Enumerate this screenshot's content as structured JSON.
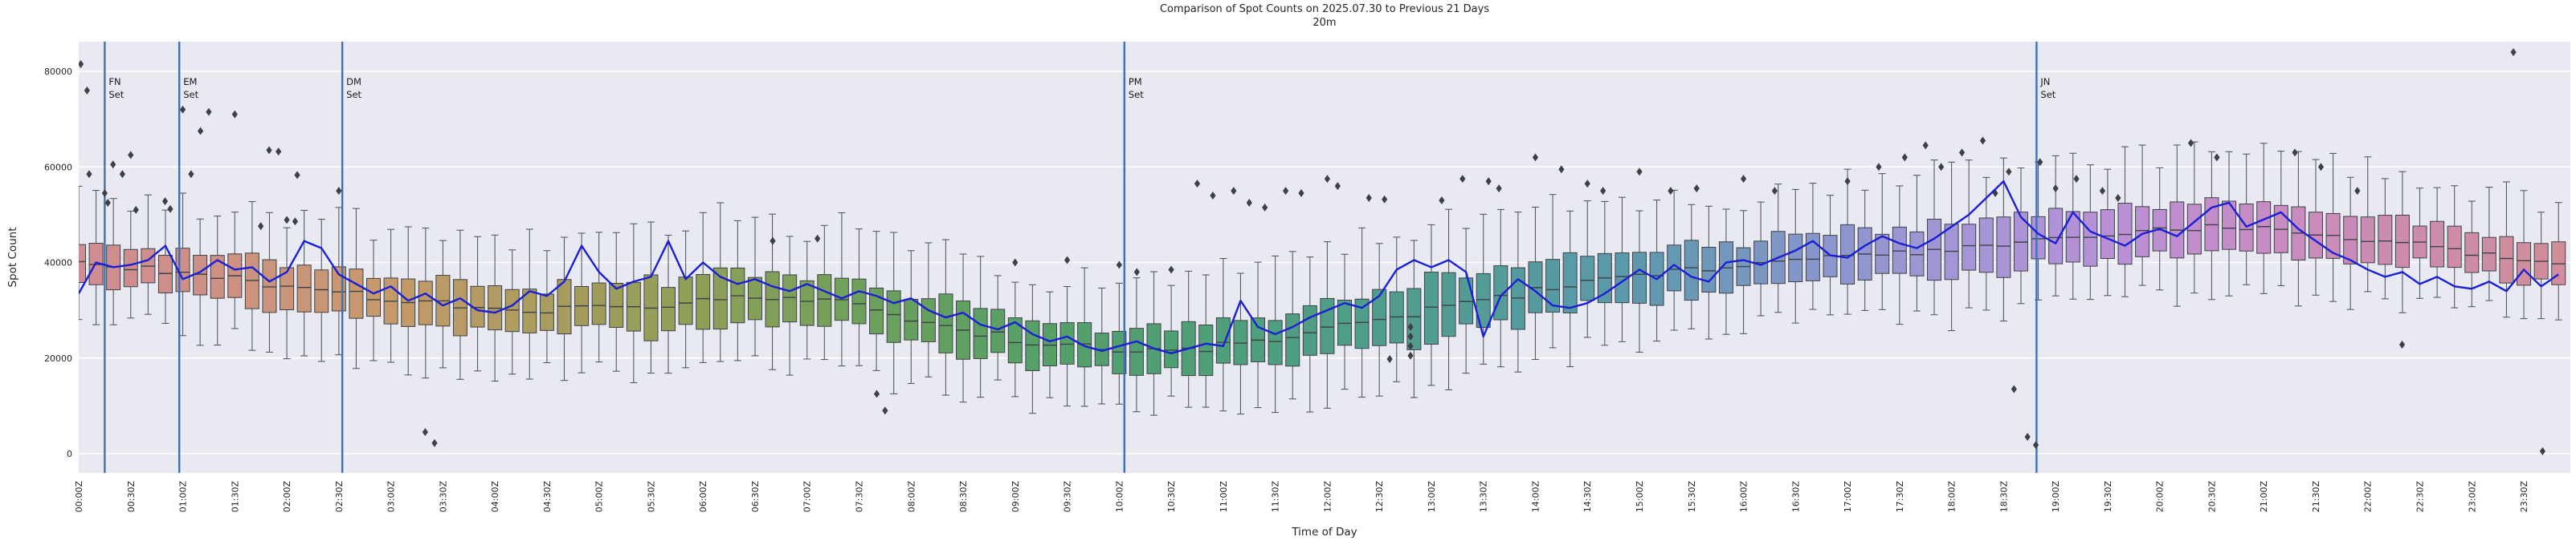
{
  "figure": {
    "title": "Comparison of Spot Counts on 2025.07.30 to Previous 21 Days",
    "subtitle": "20m",
    "x_axis_label": "Time of Day",
    "y_axis_label": "Spot Count",
    "background": "#ffffff",
    "plot_background": "#e9e9f2",
    "gridline_color": "#ffffff"
  },
  "chart_data": {
    "type": "boxplot+line",
    "title": "Comparison of Spot Counts on 2025.07.30 to Previous 21 Days",
    "subtitle_band": "20m",
    "xlabel": "Time of Day",
    "ylabel": "Spot Count",
    "x_unit": "UTC time of day",
    "y_unit": "spot count",
    "interval_minutes": 10,
    "x_tick_labels": [
      "00:00Z",
      "00:30Z",
      "01:00Z",
      "01:30Z",
      "02:00Z",
      "02:30Z",
      "03:00Z",
      "03:30Z",
      "04:00Z",
      "04:30Z",
      "05:00Z",
      "05:30Z",
      "06:00Z",
      "06:30Z",
      "07:00Z",
      "07:30Z",
      "08:00Z",
      "08:30Z",
      "09:00Z",
      "09:30Z",
      "10:00Z",
      "10:30Z",
      "11:00Z",
      "11:30Z",
      "12:00Z",
      "12:30Z",
      "13:00Z",
      "13:30Z",
      "14:00Z",
      "14:30Z",
      "15:00Z",
      "15:30Z",
      "16:00Z",
      "16:30Z",
      "17:00Z",
      "17:30Z",
      "18:00Z",
      "18:30Z",
      "19:00Z",
      "19:30Z",
      "20:00Z",
      "20:30Z",
      "21:00Z",
      "21:30Z",
      "22:00Z",
      "22:30Z",
      "23:00Z",
      "23:30Z"
    ],
    "y_ticks": [
      0,
      20000,
      40000,
      60000,
      80000
    ],
    "y_tick_labels": [
      "0",
      "20000",
      "40000",
      "60000",
      "80000"
    ],
    "ylim_top": 86300,
    "ylim_bottom": -4000,
    "anchor_step_minutes": 30,
    "box_median_anchors_k": [
      39.5,
      39,
      38,
      36.5,
      35,
      34,
      32.5,
      31.5,
      30.5,
      30,
      30.5,
      31,
      32,
      32.5,
      32.5,
      31,
      28.5,
      26,
      24,
      22.5,
      21.8,
      21.5,
      22.5,
      24,
      26,
      28,
      30,
      32,
      34,
      36,
      37.5,
      38.5,
      39.5,
      40,
      41,
      42,
      43,
      44,
      45,
      46,
      47,
      47.5,
      47.5,
      46.5,
      45,
      43.5,
      42,
      40.5,
      40
    ],
    "box_iqr_halfwidth_anchors_k": [
      4.5,
      4.5,
      4.5,
      5,
      5,
      5,
      5,
      5,
      5,
      5,
      5,
      5.5,
      5.5,
      5.5,
      5.5,
      5.5,
      5.5,
      5,
      4.5,
      4.5,
      4.5,
      4.5,
      5,
      5.5,
      6,
      6,
      6.5,
      6.5,
      6.5,
      6,
      5.5,
      5.5,
      5,
      5,
      5.5,
      5.5,
      6,
      6,
      5.5,
      5.5,
      5,
      5,
      5,
      5,
      5,
      4.5,
      4.5,
      4.5,
      4.5
    ],
    "box_whisker_low_extent_anchors_k": [
      9,
      9,
      9,
      10,
      10,
      10,
      10,
      10,
      10,
      10,
      10,
      10,
      10,
      10,
      10,
      10,
      10,
      9,
      8,
      8,
      8,
      8,
      9,
      10,
      11,
      11,
      11,
      11,
      11,
      10,
      9,
      9,
      9,
      9,
      9,
      10,
      10,
      10,
      10,
      9,
      9,
      9,
      9,
      9,
      9,
      8,
      8,
      8,
      8
    ],
    "box_whisker_high_extent_anchors_k": [
      11,
      11,
      11,
      12,
      12,
      12,
      11,
      11,
      11,
      11,
      11,
      12,
      12,
      12,
      12,
      12,
      11,
      10,
      10,
      10,
      10,
      10,
      11,
      12,
      13,
      13,
      13,
      13,
      12,
      12,
      11,
      11,
      10,
      10,
      11,
      12,
      12,
      13,
      13,
      12,
      12,
      12,
      11,
      11,
      11,
      10,
      10,
      10,
      10
    ],
    "current_day_line_k": [
      33.5,
      40,
      39,
      39.5,
      40.5,
      43.5,
      36.5,
      38,
      40.5,
      38.5,
      39,
      36,
      38,
      44.5,
      43,
      37.5,
      35.5,
      33.5,
      35,
      32,
      33.5,
      31,
      32.5,
      30,
      29.5,
      31,
      34,
      33,
      36,
      43.5,
      38,
      34.5,
      36,
      37,
      44.5,
      36.5,
      40,
      37,
      35.5,
      36.5,
      35,
      34,
      35.5,
      34,
      32.5,
      34,
      33,
      31.5,
      32.5,
      30,
      28.5,
      29.5,
      27,
      26,
      27.5,
      25,
      23.5,
      24.5,
      22.5,
      21.5,
      22.5,
      23.5,
      22,
      21,
      22,
      23,
      22.5,
      32,
      26.5,
      25,
      26.5,
      28.5,
      30,
      31.5,
      30.5,
      33,
      38.5,
      40.5,
      39,
      40.5,
      38,
      24.5,
      33,
      36.5,
      34,
      31,
      30.5,
      31.5,
      33.5,
      36,
      38.5,
      36.5,
      39.5,
      37,
      36,
      40,
      40.5,
      39.5,
      41,
      42.5,
      44.5,
      41.5,
      41,
      43.5,
      45.5,
      44,
      43,
      45,
      47.5,
      50,
      53.5,
      57,
      49.5,
      46,
      44,
      50.5,
      46.5,
      45,
      43.5,
      46,
      47,
      45.5,
      48.5,
      51.5,
      52.5,
      47.5,
      49,
      50.5,
      47,
      44.5,
      42,
      40.5,
      38.5,
      37,
      38,
      35.5,
      37,
      35,
      34.5,
      36,
      34,
      38.5,
      35,
      37.5
    ],
    "outliers_t_hours_value_k": [
      [
        0.02,
        81.5
      ],
      [
        0.08,
        76
      ],
      [
        0.1,
        58.5
      ],
      [
        0.25,
        54.5
      ],
      [
        0.28,
        52.5
      ],
      [
        0.33,
        60.5
      ],
      [
        0.42,
        58.5
      ],
      [
        0.5,
        62.5
      ],
      [
        0.55,
        51
      ],
      [
        0.83,
        52.8
      ],
      [
        0.88,
        51.2
      ],
      [
        1,
        72
      ],
      [
        1.08,
        58.5
      ],
      [
        1.17,
        67.5
      ],
      [
        1.25,
        71.5
      ],
      [
        1.5,
        71
      ],
      [
        1.75,
        47.6
      ],
      [
        1.83,
        63.5
      ],
      [
        1.92,
        63.2
      ],
      [
        2,
        48.9
      ],
      [
        2.08,
        48.6
      ],
      [
        2.1,
        58.3
      ],
      [
        2.5,
        55
      ],
      [
        3.33,
        4.5
      ],
      [
        3.42,
        2.2
      ],
      [
        6.67,
        44.5
      ],
      [
        7.1,
        45
      ],
      [
        7.67,
        12.5
      ],
      [
        7.75,
        9
      ],
      [
        9,
        40
      ],
      [
        9.5,
        40.5
      ],
      [
        10,
        39.5
      ],
      [
        10.17,
        38
      ],
      [
        10.5,
        38.5
      ],
      [
        10.75,
        56.5
      ],
      [
        10.9,
        54
      ],
      [
        11.1,
        55
      ],
      [
        11.25,
        52.5
      ],
      [
        11.4,
        51.5
      ],
      [
        11.6,
        55
      ],
      [
        11.75,
        54.5
      ],
      [
        12,
        57.5
      ],
      [
        12.1,
        56
      ],
      [
        12.4,
        53.5
      ],
      [
        12.55,
        53.2
      ],
      [
        12.6,
        19.8
      ],
      [
        12.8,
        26.5
      ],
      [
        12.8,
        24.5
      ],
      [
        12.8,
        22.5
      ],
      [
        12.8,
        20.5
      ],
      [
        13.1,
        53
      ],
      [
        13.3,
        57.5
      ],
      [
        13.55,
        57
      ],
      [
        13.65,
        55.5
      ],
      [
        14,
        62
      ],
      [
        14.25,
        59.5
      ],
      [
        14.5,
        56.5
      ],
      [
        14.65,
        55
      ],
      [
        15,
        59
      ],
      [
        15.3,
        55
      ],
      [
        15.55,
        55.5
      ],
      [
        16,
        57.5
      ],
      [
        16.3,
        55
      ],
      [
        17,
        57
      ],
      [
        17.3,
        60
      ],
      [
        17.55,
        62
      ],
      [
        17.75,
        64.5
      ],
      [
        17.9,
        60
      ],
      [
        18.1,
        63
      ],
      [
        18.3,
        65.5
      ],
      [
        18.42,
        54.5
      ],
      [
        18.55,
        59
      ],
      [
        18.6,
        13.5
      ],
      [
        18.73,
        3.5
      ],
      [
        18.81,
        1.8
      ],
      [
        18.85,
        61
      ],
      [
        19,
        55.5
      ],
      [
        19.2,
        57.5
      ],
      [
        19.45,
        55
      ],
      [
        19.6,
        53.5
      ],
      [
        20.3,
        65
      ],
      [
        20.55,
        62
      ],
      [
        21.3,
        63
      ],
      [
        21.55,
        60
      ],
      [
        21.9,
        55
      ],
      [
        22.33,
        22.8
      ],
      [
        23.4,
        84
      ],
      [
        23.68,
        0.5
      ]
    ],
    "sunset_lines": [
      {
        "line1": "FN",
        "line2": "Set",
        "minutes": 15
      },
      {
        "line1": "EM",
        "line2": "Set",
        "minutes": 58
      },
      {
        "line1": "DM",
        "line2": "Set",
        "minutes": 152
      },
      {
        "line1": "PM",
        "line2": "Set",
        "minutes": 603
      },
      {
        "line1": "JN",
        "line2": "Set",
        "minutes": 1129
      }
    ],
    "box_color_stops": [
      [
        0,
        "#cf8d95"
      ],
      [
        1.5,
        "#cc9180"
      ],
      [
        3,
        "#c59a69"
      ],
      [
        4.5,
        "#a89c5e"
      ],
      [
        6,
        "#8f9f58"
      ],
      [
        7.5,
        "#6fa05b"
      ],
      [
        9,
        "#58a065"
      ],
      [
        10.5,
        "#4f9f74"
      ],
      [
        12,
        "#4f9e85"
      ],
      [
        13.5,
        "#539c98"
      ],
      [
        15,
        "#5e98ad"
      ],
      [
        16.5,
        "#8496c8"
      ],
      [
        18,
        "#a396d6"
      ],
      [
        19.5,
        "#b790d6"
      ],
      [
        21,
        "#c78cc3"
      ],
      [
        22.5,
        "#cd8cab"
      ],
      [
        24,
        "#d08d98"
      ]
    ],
    "legend_position": "none",
    "grid": "horizontal-only",
    "line_color": "#1b1fd6",
    "sunset_line_color": "#4070b4",
    "box_edge_color": "#3d4248",
    "whisker_color": "#565b61",
    "median_color": "#3d4248",
    "outlier_color": "#3d4045",
    "tick_label_color": "#262626"
  }
}
